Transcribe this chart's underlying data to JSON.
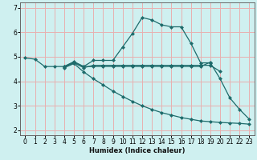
{
  "xlabel": "Humidex (Indice chaleur)",
  "bg_color": "#cff0f0",
  "line_color": "#1e6b6b",
  "grid_color": "#e8b0b0",
  "xlim": [
    -0.5,
    23.5
  ],
  "ylim": [
    1.8,
    7.2
  ],
  "xticks": [
    0,
    1,
    2,
    3,
    4,
    5,
    6,
    7,
    8,
    9,
    10,
    11,
    12,
    13,
    14,
    15,
    16,
    17,
    18,
    19,
    20,
    21,
    22,
    23
  ],
  "yticks": [
    2,
    3,
    4,
    5,
    6,
    7
  ],
  "lines": [
    {
      "x": [
        0,
        1,
        2,
        3,
        4,
        5,
        6,
        7,
        8,
        9,
        10,
        11,
        12,
        13,
        14,
        15,
        16,
        17,
        18,
        19,
        20,
        21,
        22,
        23
      ],
      "y": [
        4.95,
        4.9,
        4.6,
        4.6,
        4.6,
        4.8,
        4.6,
        4.85,
        4.85,
        4.85,
        5.4,
        5.95,
        6.6,
        6.5,
        6.3,
        6.22,
        6.22,
        5.55,
        4.75,
        4.75,
        4.1,
        3.32,
        2.85,
        2.45
      ]
    },
    {
      "x": [
        4,
        5,
        6,
        7,
        8,
        9,
        10,
        11,
        12,
        13,
        14,
        15,
        16,
        17,
        18,
        19
      ],
      "y": [
        4.6,
        4.78,
        4.6,
        4.6,
        4.6,
        4.6,
        4.6,
        4.6,
        4.6,
        4.6,
        4.6,
        4.6,
        4.6,
        4.6,
        4.6,
        4.78
      ]
    },
    {
      "x": [
        4,
        5,
        6,
        7,
        8,
        9,
        10,
        11,
        12,
        13,
        14,
        15,
        16,
        17,
        18,
        19,
        20
      ],
      "y": [
        4.58,
        4.75,
        4.55,
        4.65,
        4.65,
        4.65,
        4.65,
        4.65,
        4.65,
        4.65,
        4.65,
        4.65,
        4.65,
        4.65,
        4.65,
        4.65,
        4.4
      ]
    },
    {
      "x": [
        4,
        5,
        6,
        7,
        8,
        9,
        10,
        11,
        12,
        13,
        14,
        15,
        16,
        17,
        18,
        19,
        20,
        21,
        22,
        23
      ],
      "y": [
        4.55,
        4.72,
        4.38,
        4.1,
        3.85,
        3.6,
        3.38,
        3.18,
        3.0,
        2.85,
        2.72,
        2.62,
        2.52,
        2.45,
        2.38,
        2.35,
        2.32,
        2.3,
        2.28,
        2.25
      ]
    }
  ]
}
